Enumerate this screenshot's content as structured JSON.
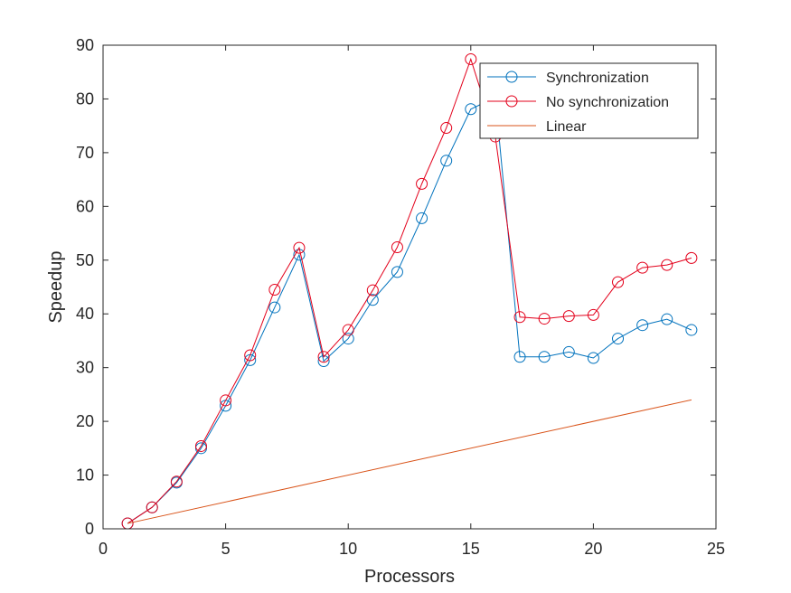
{
  "chart_data": {
    "type": "line",
    "title": "",
    "xlabel": "Processors",
    "ylabel": "Speedup",
    "xlim": [
      0,
      25
    ],
    "ylim": [
      0,
      90
    ],
    "xticks": [
      0,
      5,
      10,
      15,
      20,
      25
    ],
    "yticks": [
      0,
      10,
      20,
      30,
      40,
      50,
      60,
      70,
      80,
      90
    ],
    "grid": false,
    "legend_position": "top-right",
    "series": [
      {
        "name": "Synchronization",
        "color": "#0072bd",
        "marker": "circle",
        "x": [
          1,
          2,
          3,
          4,
          5,
          6,
          7,
          8,
          9,
          10,
          11,
          12,
          13,
          14,
          15,
          16,
          17,
          18,
          19,
          20,
          21,
          22,
          23,
          24
        ],
        "values": [
          1.0,
          4.0,
          8.6,
          15.0,
          22.9,
          31.4,
          41.2,
          51.0,
          31.2,
          35.4,
          42.6,
          47.8,
          57.8,
          68.5,
          78.1,
          80.3,
          32.0,
          32.0,
          32.9,
          31.8,
          35.4,
          37.9,
          39.0,
          37.0
        ]
      },
      {
        "name": "No synchronization",
        "color": "#e3001b",
        "marker": "circle",
        "x": [
          1,
          2,
          3,
          4,
          5,
          6,
          7,
          8,
          9,
          10,
          11,
          12,
          13,
          14,
          15,
          16,
          17,
          18,
          19,
          20,
          21,
          22,
          23,
          24
        ],
        "values": [
          1.0,
          4.0,
          8.8,
          15.4,
          23.9,
          32.3,
          44.5,
          52.3,
          32.0,
          37.0,
          44.4,
          52.4,
          64.2,
          74.6,
          87.4,
          73.0,
          39.4,
          39.1,
          39.6,
          39.8,
          45.9,
          48.6,
          49.1,
          50.4
        ]
      },
      {
        "name": "Linear",
        "color": "#d95319",
        "marker": "none",
        "x": [
          1,
          24
        ],
        "values": [
          1,
          24
        ]
      }
    ]
  }
}
